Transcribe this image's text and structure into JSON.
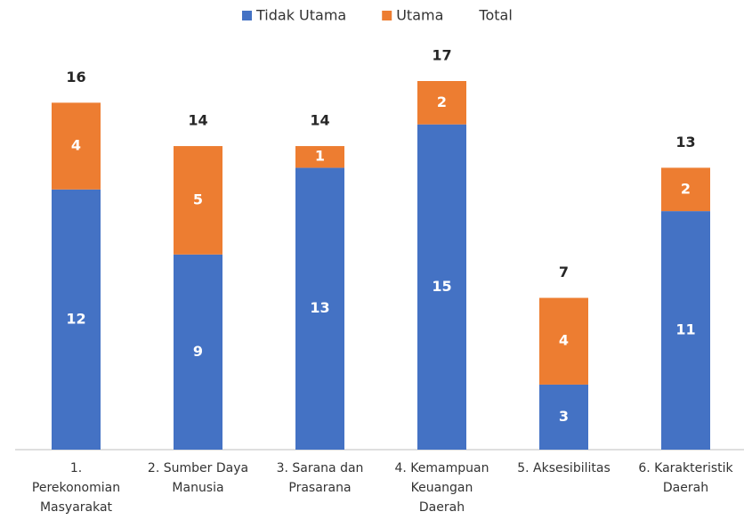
{
  "chart_data": {
    "type": "stacked_bar",
    "categories": [
      [
        "1.",
        "Perekonomian",
        "Masyarakat"
      ],
      [
        "2. Sumber Daya",
        "Manusia"
      ],
      [
        "3. Sarana dan",
        "Prasarana"
      ],
      [
        "4. Kemampuan",
        "Keuangan",
        "Daerah"
      ],
      [
        "5. Aksesibilitas"
      ],
      [
        "6. Karakteristik",
        "Daerah"
      ]
    ],
    "series": [
      {
        "name": "Tidak Utama",
        "color": "#4472c4",
        "values": [
          12,
          9,
          13,
          15,
          3,
          11
        ]
      },
      {
        "name": "Utama",
        "color": "#ed7d31",
        "values": [
          4,
          5,
          1,
          2,
          4,
          2
        ]
      },
      {
        "name": "Total",
        "values": [
          16,
          14,
          14,
          17,
          7,
          13
        ]
      }
    ],
    "legend": "top"
  }
}
